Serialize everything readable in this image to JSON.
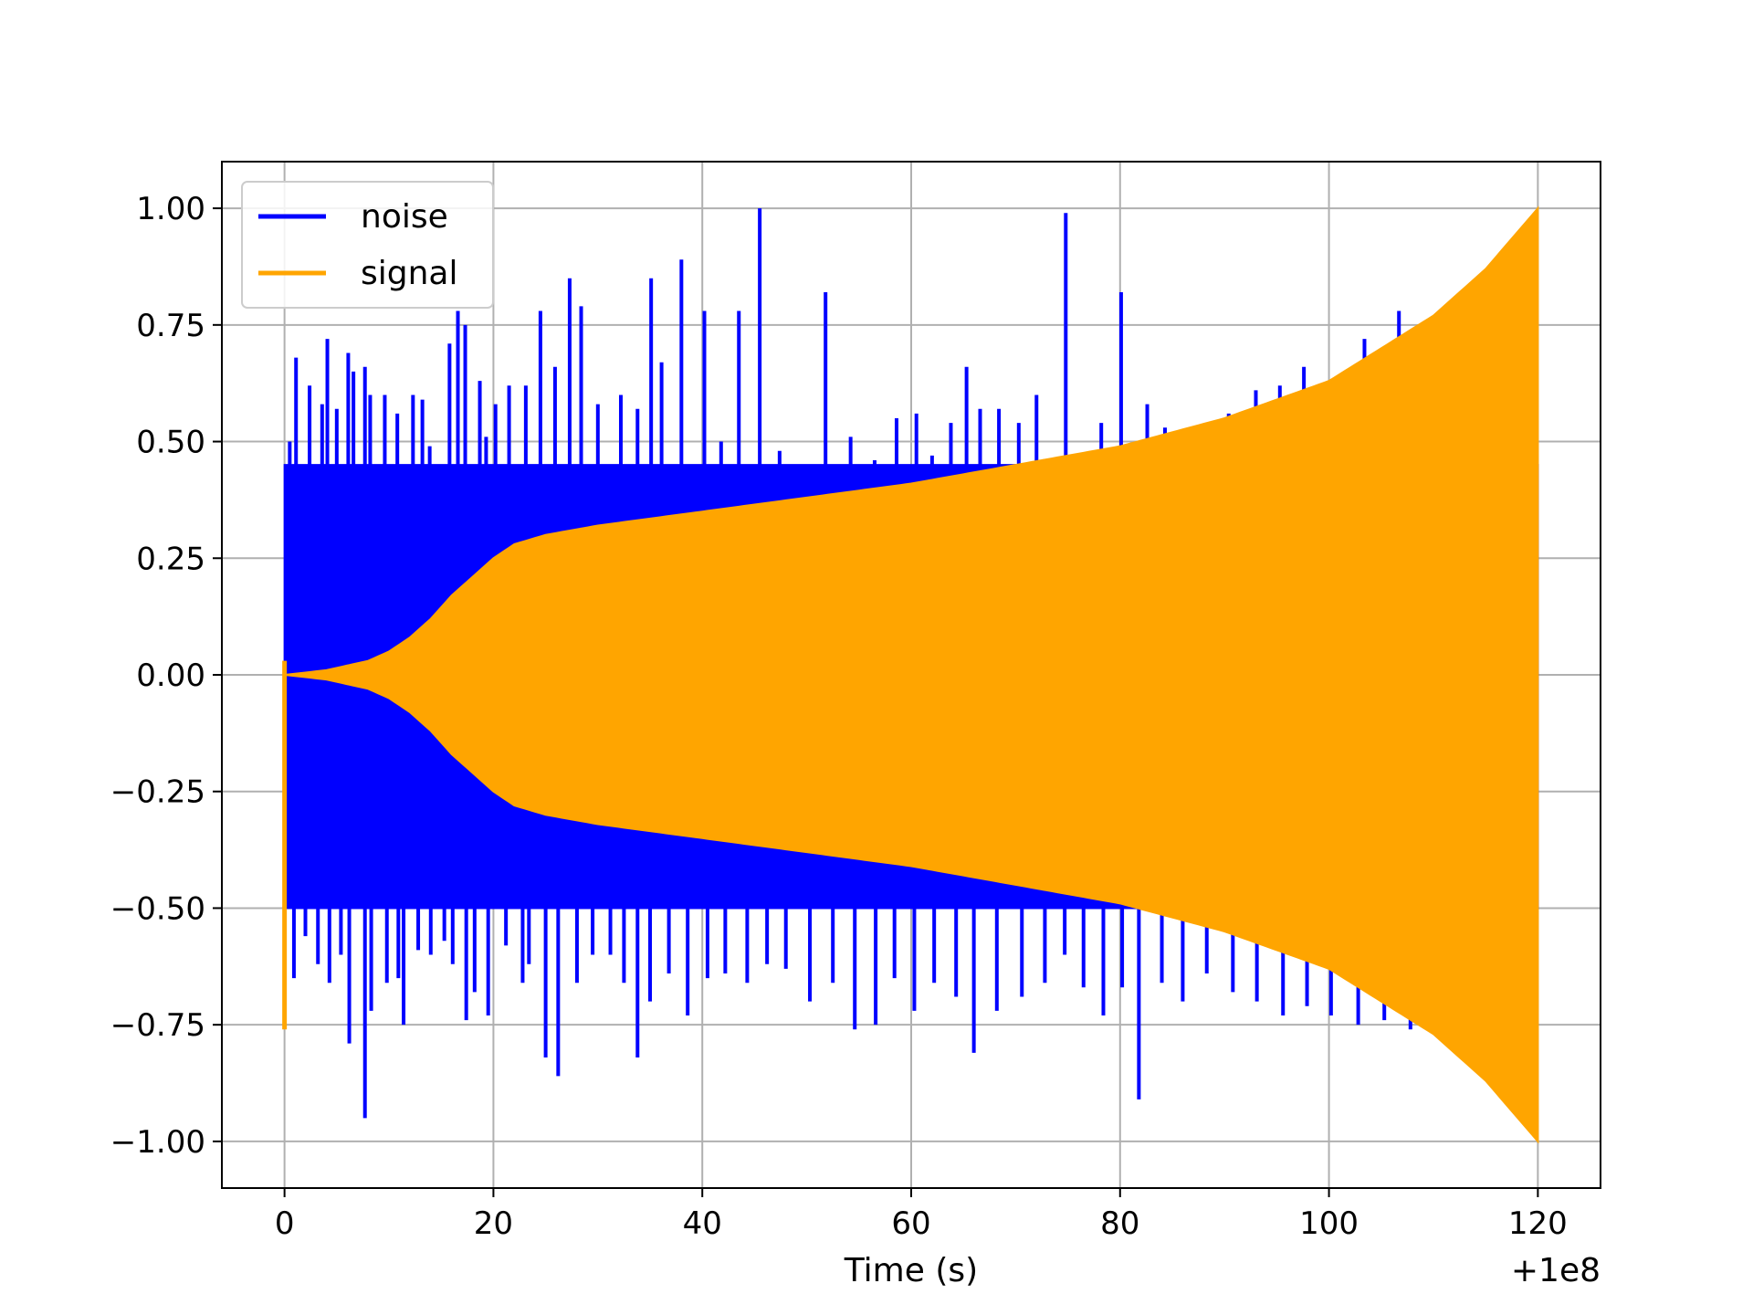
{
  "chart_data": {
    "type": "line",
    "title": "",
    "xlabel": "Time (s)",
    "ylabel": "",
    "x_offset_label": "+1e8",
    "xlim": [
      -6,
      126
    ],
    "ylim": [
      -1.1,
      1.1
    ],
    "grid": true,
    "legend_position": "top-left",
    "x_ticks": [
      0,
      20,
      40,
      60,
      80,
      100,
      120
    ],
    "x_tick_labels": [
      "0",
      "20",
      "40",
      "60",
      "80",
      "100",
      "120"
    ],
    "y_ticks": [
      1.0,
      0.75,
      0.5,
      0.25,
      0.0,
      -0.25,
      -0.5,
      -0.75,
      -1.0
    ],
    "y_tick_labels": [
      "1.00",
      "0.75",
      "0.50",
      "0.25",
      "0.00",
      "−0.25",
      "−0.50",
      "−0.75",
      "−1.00"
    ],
    "series": [
      {
        "name": "noise",
        "color": "#0000ff",
        "x_range": [
          0,
          120
        ],
        "envelope_x": [
          0,
          10,
          20,
          30,
          40,
          50,
          60,
          70,
          80,
          90,
          100,
          110,
          120
        ],
        "envelope_upper": [
          0.45,
          0.45,
          0.45,
          0.45,
          0.45,
          0.45,
          0.45,
          0.45,
          0.45,
          0.45,
          0.45,
          0.45,
          0.45
        ],
        "envelope_lower": [
          -0.5,
          -0.5,
          -0.5,
          -0.5,
          -0.5,
          -0.5,
          -0.5,
          -0.5,
          -0.5,
          -0.5,
          -0.5,
          -0.5,
          -0.5
        ],
        "spikes": [
          {
            "x": 0.5,
            "y": 0.5
          },
          {
            "x": 1.1,
            "y": 0.68
          },
          {
            "x": 2.4,
            "y": 0.62
          },
          {
            "x": 3.6,
            "y": 0.58
          },
          {
            "x": 4.1,
            "y": 0.72
          },
          {
            "x": 5.0,
            "y": 0.57
          },
          {
            "x": 6.1,
            "y": 0.69
          },
          {
            "x": 6.6,
            "y": 0.65
          },
          {
            "x": 7.7,
            "y": 0.66
          },
          {
            "x": 8.2,
            "y": 0.6
          },
          {
            "x": 9.6,
            "y": 0.6
          },
          {
            "x": 10.8,
            "y": 0.56
          },
          {
            "x": 12.3,
            "y": 0.6
          },
          {
            "x": 13.2,
            "y": 0.59
          },
          {
            "x": 13.9,
            "y": 0.49
          },
          {
            "x": 15.8,
            "y": 0.71
          },
          {
            "x": 16.6,
            "y": 0.78
          },
          {
            "x": 17.3,
            "y": 0.75
          },
          {
            "x": 18.7,
            "y": 0.63
          },
          {
            "x": 19.3,
            "y": 0.51
          },
          {
            "x": 20.2,
            "y": 0.58
          },
          {
            "x": 21.5,
            "y": 0.62
          },
          {
            "x": 23.1,
            "y": 0.62
          },
          {
            "x": 24.5,
            "y": 0.78
          },
          {
            "x": 25.9,
            "y": 0.66
          },
          {
            "x": 27.3,
            "y": 0.85
          },
          {
            "x": 28.4,
            "y": 0.79
          },
          {
            "x": 30.0,
            "y": 0.58
          },
          {
            "x": 32.2,
            "y": 0.6
          },
          {
            "x": 33.8,
            "y": 0.57
          },
          {
            "x": 35.1,
            "y": 0.85
          },
          {
            "x": 36.1,
            "y": 0.67
          },
          {
            "x": 38.0,
            "y": 0.89
          },
          {
            "x": 40.2,
            "y": 0.78
          },
          {
            "x": 41.8,
            "y": 0.5
          },
          {
            "x": 43.5,
            "y": 0.78
          },
          {
            "x": 45.5,
            "y": 1.0
          },
          {
            "x": 47.4,
            "y": 0.48
          },
          {
            "x": 51.8,
            "y": 0.82
          },
          {
            "x": 54.2,
            "y": 0.51
          },
          {
            "x": 56.5,
            "y": 0.46
          },
          {
            "x": 58.6,
            "y": 0.55
          },
          {
            "x": 60.5,
            "y": 0.56
          },
          {
            "x": 62.0,
            "y": 0.47
          },
          {
            "x": 63.8,
            "y": 0.54
          },
          {
            "x": 65.3,
            "y": 0.66
          },
          {
            "x": 66.6,
            "y": 0.57
          },
          {
            "x": 68.4,
            "y": 0.57
          },
          {
            "x": 70.3,
            "y": 0.54
          },
          {
            "x": 72.0,
            "y": 0.6
          },
          {
            "x": 74.8,
            "y": 0.99
          },
          {
            "x": 78.2,
            "y": 0.54
          },
          {
            "x": 80.1,
            "y": 0.82
          },
          {
            "x": 82.6,
            "y": 0.58
          },
          {
            "x": 84.3,
            "y": 0.53
          },
          {
            "x": 86.1,
            "y": 0.5
          },
          {
            "x": 88.4,
            "y": 0.5
          },
          {
            "x": 90.4,
            "y": 0.56
          },
          {
            "x": 93.0,
            "y": 0.61
          },
          {
            "x": 95.3,
            "y": 0.62
          },
          {
            "x": 97.6,
            "y": 0.66
          },
          {
            "x": 100.8,
            "y": 0.63
          },
          {
            "x": 103.4,
            "y": 0.72
          },
          {
            "x": 106.7,
            "y": 0.78
          },
          {
            "x": 0.9,
            "y": -0.65
          },
          {
            "x": 2.0,
            "y": -0.56
          },
          {
            "x": 3.2,
            "y": -0.62
          },
          {
            "x": 4.3,
            "y": -0.66
          },
          {
            "x": 5.4,
            "y": -0.6
          },
          {
            "x": 6.2,
            "y": -0.79
          },
          {
            "x": 7.7,
            "y": -0.95
          },
          {
            "x": 8.3,
            "y": -0.72
          },
          {
            "x": 9.8,
            "y": -0.66
          },
          {
            "x": 10.9,
            "y": -0.65
          },
          {
            "x": 11.4,
            "y": -0.75
          },
          {
            "x": 12.8,
            "y": -0.59
          },
          {
            "x": 14.0,
            "y": -0.6
          },
          {
            "x": 15.3,
            "y": -0.57
          },
          {
            "x": 16.1,
            "y": -0.62
          },
          {
            "x": 17.4,
            "y": -0.74
          },
          {
            "x": 18.2,
            "y": -0.68
          },
          {
            "x": 19.5,
            "y": -0.73
          },
          {
            "x": 21.2,
            "y": -0.58
          },
          {
            "x": 22.8,
            "y": -0.66
          },
          {
            "x": 23.4,
            "y": -0.62
          },
          {
            "x": 25.0,
            "y": -0.82
          },
          {
            "x": 26.2,
            "y": -0.86
          },
          {
            "x": 28.0,
            "y": -0.66
          },
          {
            "x": 29.5,
            "y": -0.6
          },
          {
            "x": 31.2,
            "y": -0.6
          },
          {
            "x": 32.5,
            "y": -0.66
          },
          {
            "x": 33.8,
            "y": -0.82
          },
          {
            "x": 35.0,
            "y": -0.7
          },
          {
            "x": 36.8,
            "y": -0.64
          },
          {
            "x": 38.6,
            "y": -0.73
          },
          {
            "x": 40.5,
            "y": -0.65
          },
          {
            "x": 42.2,
            "y": -0.64
          },
          {
            "x": 44.3,
            "y": -0.66
          },
          {
            "x": 46.2,
            "y": -0.62
          },
          {
            "x": 48.0,
            "y": -0.63
          },
          {
            "x": 50.3,
            "y": -0.7
          },
          {
            "x": 52.5,
            "y": -0.66
          },
          {
            "x": 54.6,
            "y": -0.76
          },
          {
            "x": 56.6,
            "y": -0.75
          },
          {
            "x": 58.4,
            "y": -0.65
          },
          {
            "x": 60.3,
            "y": -0.72
          },
          {
            "x": 62.2,
            "y": -0.66
          },
          {
            "x": 64.3,
            "y": -0.69
          },
          {
            "x": 66.0,
            "y": -0.81
          },
          {
            "x": 68.2,
            "y": -0.72
          },
          {
            "x": 70.6,
            "y": -0.69
          },
          {
            "x": 72.8,
            "y": -0.66
          },
          {
            "x": 74.7,
            "y": -0.6
          },
          {
            "x": 76.5,
            "y": -0.67
          },
          {
            "x": 78.4,
            "y": -0.73
          },
          {
            "x": 80.2,
            "y": -0.67
          },
          {
            "x": 81.8,
            "y": -0.91
          },
          {
            "x": 84.0,
            "y": -0.66
          },
          {
            "x": 86.0,
            "y": -0.7
          },
          {
            "x": 88.3,
            "y": -0.64
          },
          {
            "x": 90.8,
            "y": -0.68
          },
          {
            "x": 93.1,
            "y": -0.7
          },
          {
            "x": 95.6,
            "y": -0.73
          },
          {
            "x": 97.9,
            "y": -0.71
          },
          {
            "x": 100.2,
            "y": -0.73
          },
          {
            "x": 102.8,
            "y": -0.75
          },
          {
            "x": 105.3,
            "y": -0.74
          },
          {
            "x": 107.8,
            "y": -0.76
          }
        ]
      },
      {
        "name": "signal",
        "color": "#ffa500",
        "x_range": [
          0,
          120
        ],
        "envelope_x": [
          0,
          2,
          4,
          6,
          8,
          10,
          12,
          14,
          16,
          18,
          20,
          22,
          25,
          30,
          40,
          50,
          60,
          70,
          80,
          90,
          100,
          110,
          115,
          120
        ],
        "envelope_upper": [
          0.0,
          0.005,
          0.01,
          0.02,
          0.03,
          0.05,
          0.08,
          0.12,
          0.17,
          0.21,
          0.25,
          0.28,
          0.3,
          0.32,
          0.35,
          0.38,
          0.41,
          0.45,
          0.49,
          0.55,
          0.63,
          0.77,
          0.87,
          1.0
        ],
        "envelope_lower": [
          0.0,
          -0.005,
          -0.01,
          -0.02,
          -0.03,
          -0.05,
          -0.08,
          -0.12,
          -0.17,
          -0.21,
          -0.25,
          -0.28,
          -0.3,
          -0.32,
          -0.35,
          -0.38,
          -0.41,
          -0.45,
          -0.49,
          -0.55,
          -0.63,
          -0.77,
          -0.87,
          -1.0
        ],
        "start_transient": {
          "x": 0.0,
          "ymin": -0.76,
          "ymax": 0.03
        }
      }
    ]
  }
}
